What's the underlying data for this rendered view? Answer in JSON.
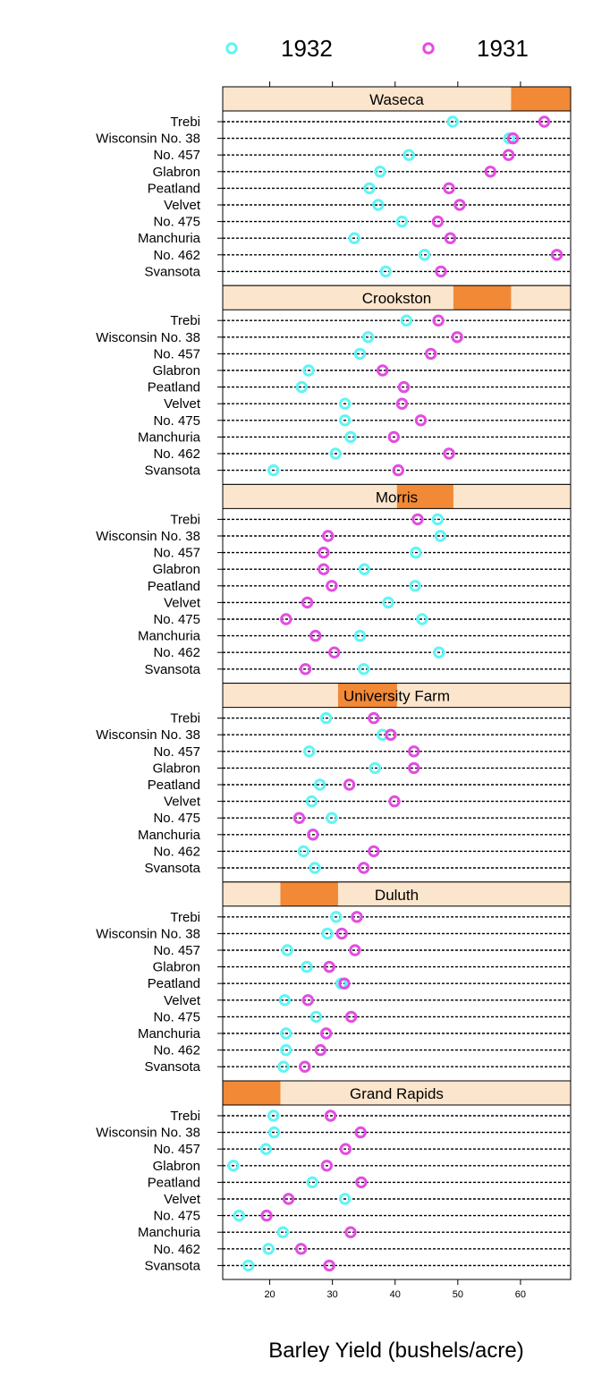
{
  "chart_data": {
    "type": "dotplot",
    "xlabel": "Barley Yield (bushels/acre)",
    "xlim": [
      12.5,
      68
    ],
    "xticks": [
      20,
      30,
      40,
      50,
      60
    ],
    "legend": {
      "placement": "top",
      "entries": [
        {
          "name": "1932",
          "color": "#5ef5f5"
        },
        {
          "name": "1931",
          "color": "#e34ce3"
        }
      ]
    },
    "categories": [
      "Trebi",
      "Wisconsin No. 38",
      "No. 457",
      "Glabron",
      "Peatland",
      "Velvet",
      "No. 475",
      "Manchuria",
      "No. 462",
      "Svansota"
    ],
    "panels": [
      {
        "site": "Waseca",
        "strip_range": [
          58.5,
          68
        ],
        "values_1932": [
          49.2,
          58.2,
          42.2,
          37.6,
          35.9,
          37.3,
          41.1,
          33.5,
          44.7,
          38.5
        ],
        "values_1931": [
          63.8,
          58.8,
          58.1,
          55.2,
          48.6,
          50.3,
          46.8,
          48.8,
          65.8,
          47.3
        ]
      },
      {
        "site": "Crookston",
        "strip_range": [
          49.3,
          58.5
        ],
        "values_1932": [
          41.8,
          35.7,
          34.4,
          26.2,
          25.1,
          32.0,
          32.0,
          32.9,
          30.5,
          20.6
        ],
        "values_1931": [
          46.9,
          49.9,
          45.7,
          38.0,
          41.4,
          41.1,
          44.1,
          39.8,
          48.6,
          40.5
        ]
      },
      {
        "site": "Morris",
        "strip_range": [
          40.3,
          49.3
        ],
        "values_1932": [
          46.8,
          47.2,
          43.3,
          35.1,
          43.2,
          38.9,
          44.3,
          34.4,
          47.0,
          35.0
        ],
        "values_1931": [
          43.6,
          29.3,
          28.6,
          28.6,
          29.9,
          26.0,
          22.6,
          27.3,
          30.3,
          25.7
        ]
      },
      {
        "site": "University Farm",
        "strip_range": [
          30.9,
          40.3
        ],
        "values_1932": [
          29.0,
          38.0,
          26.3,
          36.8,
          28.0,
          26.7,
          29.9,
          26.9,
          25.4,
          27.2
        ],
        "values_1931": [
          36.6,
          39.3,
          43.0,
          43.0,
          32.7,
          39.9,
          24.7,
          26.9,
          36.6,
          35.0
        ]
      },
      {
        "site": "Duluth",
        "strip_range": [
          21.7,
          30.9
        ],
        "values_1932": [
          30.6,
          29.2,
          22.8,
          25.9,
          31.4,
          22.4,
          27.4,
          22.6,
          22.6,
          22.2
        ],
        "values_1931": [
          33.9,
          31.5,
          33.6,
          29.5,
          31.9,
          26.1,
          33.0,
          29.0,
          28.1,
          25.6
        ]
      },
      {
        "site": "Grand Rapids",
        "strip_range": [
          12.5,
          21.7
        ],
        "values_1932": [
          20.6,
          20.7,
          19.4,
          14.2,
          26.8,
          32.0,
          15.1,
          22.1,
          19.8,
          16.6
        ],
        "values_1931": [
          29.7,
          34.5,
          32.1,
          29.1,
          34.6,
          23.0,
          19.5,
          32.9,
          25.0,
          29.5
        ]
      }
    ]
  }
}
